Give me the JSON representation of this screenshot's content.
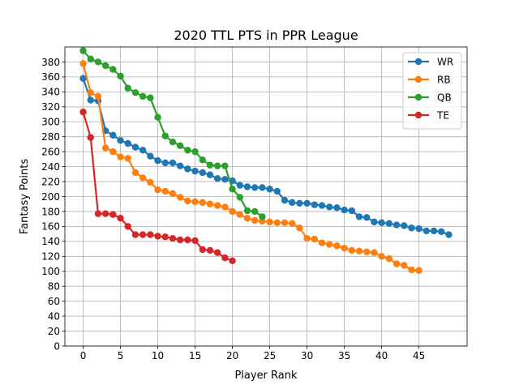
{
  "chart_data": {
    "type": "line",
    "title": "2020 TTL PTS in PPR League",
    "xlabel": "Player Rank",
    "ylabel": "Fantasy Points",
    "xlim": [
      -2.45,
      51.45
    ],
    "ylim": [
      0,
      400
    ],
    "xticks": [
      0,
      5,
      10,
      15,
      20,
      25,
      30,
      35,
      40,
      45
    ],
    "yticks": [
      0,
      20,
      40,
      60,
      80,
      100,
      120,
      140,
      160,
      180,
      200,
      220,
      240,
      260,
      280,
      300,
      320,
      340,
      360,
      380
    ],
    "grid": true,
    "legend_position": "top-right",
    "series": [
      {
        "name": "WR",
        "color": "#1f77b4",
        "values": [
          358,
          329,
          328,
          288,
          282,
          275,
          271,
          266,
          262,
          254,
          248,
          245,
          245,
          241,
          237,
          234,
          232,
          229,
          224,
          223,
          221,
          215,
          213,
          212,
          212,
          210,
          207,
          195,
          192,
          191,
          191,
          189,
          188,
          186,
          185,
          182,
          181,
          173,
          172,
          166,
          165,
          164,
          162,
          161,
          158,
          157,
          154,
          154,
          153,
          149
        ]
      },
      {
        "name": "RB",
        "color": "#ff7f0e",
        "values": [
          378,
          339,
          334,
          265,
          260,
          253,
          251,
          232,
          225,
          219,
          209,
          207,
          204,
          199,
          194,
          193,
          192,
          190,
          188,
          186,
          180,
          176,
          171,
          168,
          167,
          166,
          165,
          165,
          164,
          158,
          144,
          143,
          138,
          136,
          134,
          131,
          128,
          127,
          126,
          125,
          120,
          117,
          110,
          108,
          102,
          101
        ]
      },
      {
        "name": "QB",
        "color": "#2ca02c",
        "values": [
          395,
          384,
          380,
          375,
          370,
          361,
          345,
          339,
          334,
          332,
          306,
          281,
          273,
          268,
          262,
          260,
          249,
          242,
          241,
          241,
          210,
          199,
          181,
          180,
          173
        ]
      },
      {
        "name": "TE",
        "color": "#d62728",
        "values": [
          313,
          279,
          177,
          177,
          176,
          171,
          160,
          149,
          149,
          149,
          147,
          146,
          144,
          142,
          142,
          141,
          129,
          128,
          125,
          118,
          114
        ]
      }
    ]
  }
}
